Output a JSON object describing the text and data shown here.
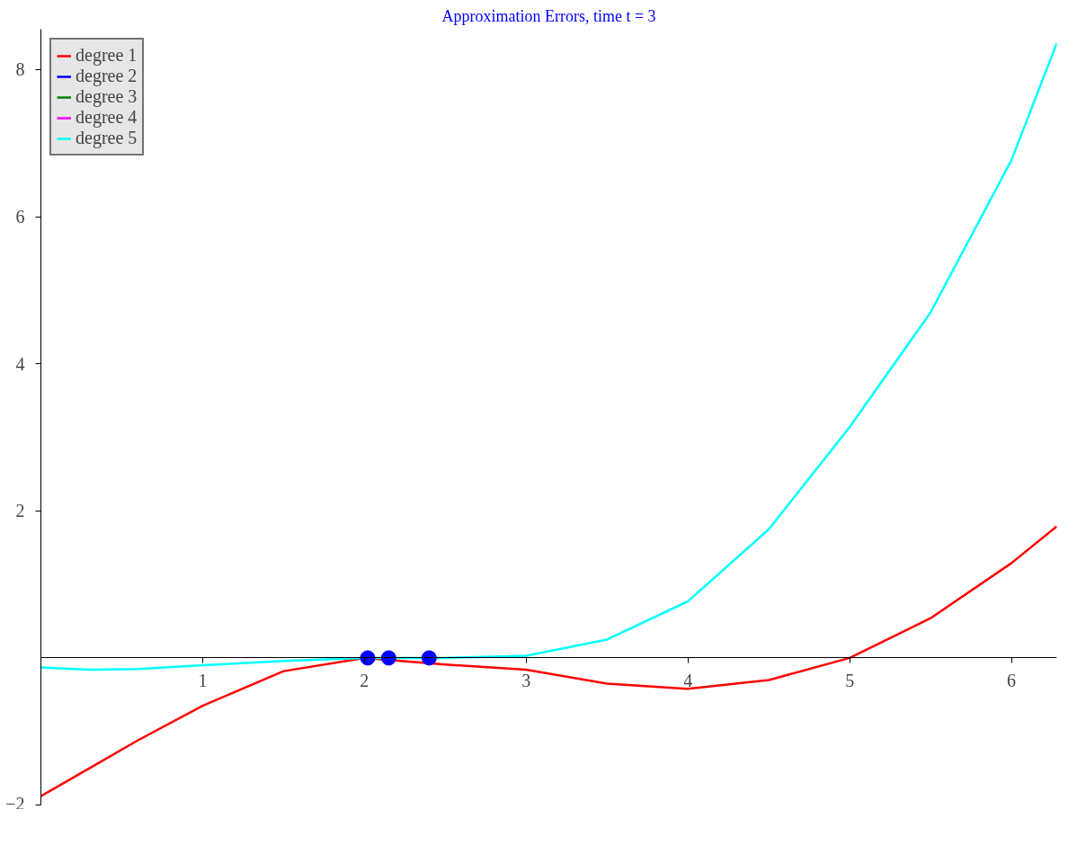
{
  "chart_data": {
    "type": "line",
    "title": "Approximation Errors, time t = 3",
    "xlim": [
      0,
      6.28
    ],
    "ylim": [
      -2,
      8.55
    ],
    "xticks": [
      1,
      2,
      3,
      4,
      5,
      6
    ],
    "yticks": [
      -2,
      2,
      4,
      6,
      8
    ],
    "grid": false,
    "legend": "top left",
    "line_style": "solid",
    "marker": "none",
    "x": [
      0,
      0.3,
      0.6,
      1,
      1.5,
      2,
      2.5,
      3,
      3.5,
      4,
      4.5,
      5,
      5.5,
      6,
      6.28
    ],
    "series": [
      {
        "name": "degree 1",
        "color": "#ff0000",
        "values": [
          -1.88,
          -1.5,
          -1.12,
          -0.65,
          -0.18,
          0,
          -0.09,
          -0.16,
          -0.35,
          -0.42,
          -0.3,
          0,
          0.54,
          1.29,
          1.79
        ]
      },
      {
        "name": "degree 2",
        "color": "#0000ff",
        "values": [
          null,
          null,
          null,
          null,
          null,
          null,
          null,
          null,
          null,
          null,
          null,
          null,
          null,
          null,
          null
        ]
      },
      {
        "name": "degree 3",
        "color": "#008000",
        "values": [
          null,
          null,
          null,
          null,
          null,
          null,
          null,
          null,
          null,
          null,
          null,
          null,
          null,
          null,
          null
        ]
      },
      {
        "name": "degree 4",
        "color": "#ff00ff",
        "values": [
          null,
          null,
          null,
          null,
          null,
          null,
          null,
          null,
          null,
          null,
          null,
          null,
          null,
          null,
          null
        ]
      },
      {
        "name": "degree 5",
        "color": "#00ffff",
        "values": [
          -0.13,
          -0.16,
          -0.15,
          -0.1,
          -0.04,
          0,
          0,
          0.03,
          0.25,
          0.77,
          1.75,
          3.14,
          4.7,
          6.77,
          8.36
        ]
      },
      {
        "type": "scatter",
        "marker": "circle",
        "color": "#0000ff",
        "x": [
          2.02,
          2.15,
          2.4
        ],
        "values": [
          0,
          0,
          0
        ]
      }
    ]
  }
}
